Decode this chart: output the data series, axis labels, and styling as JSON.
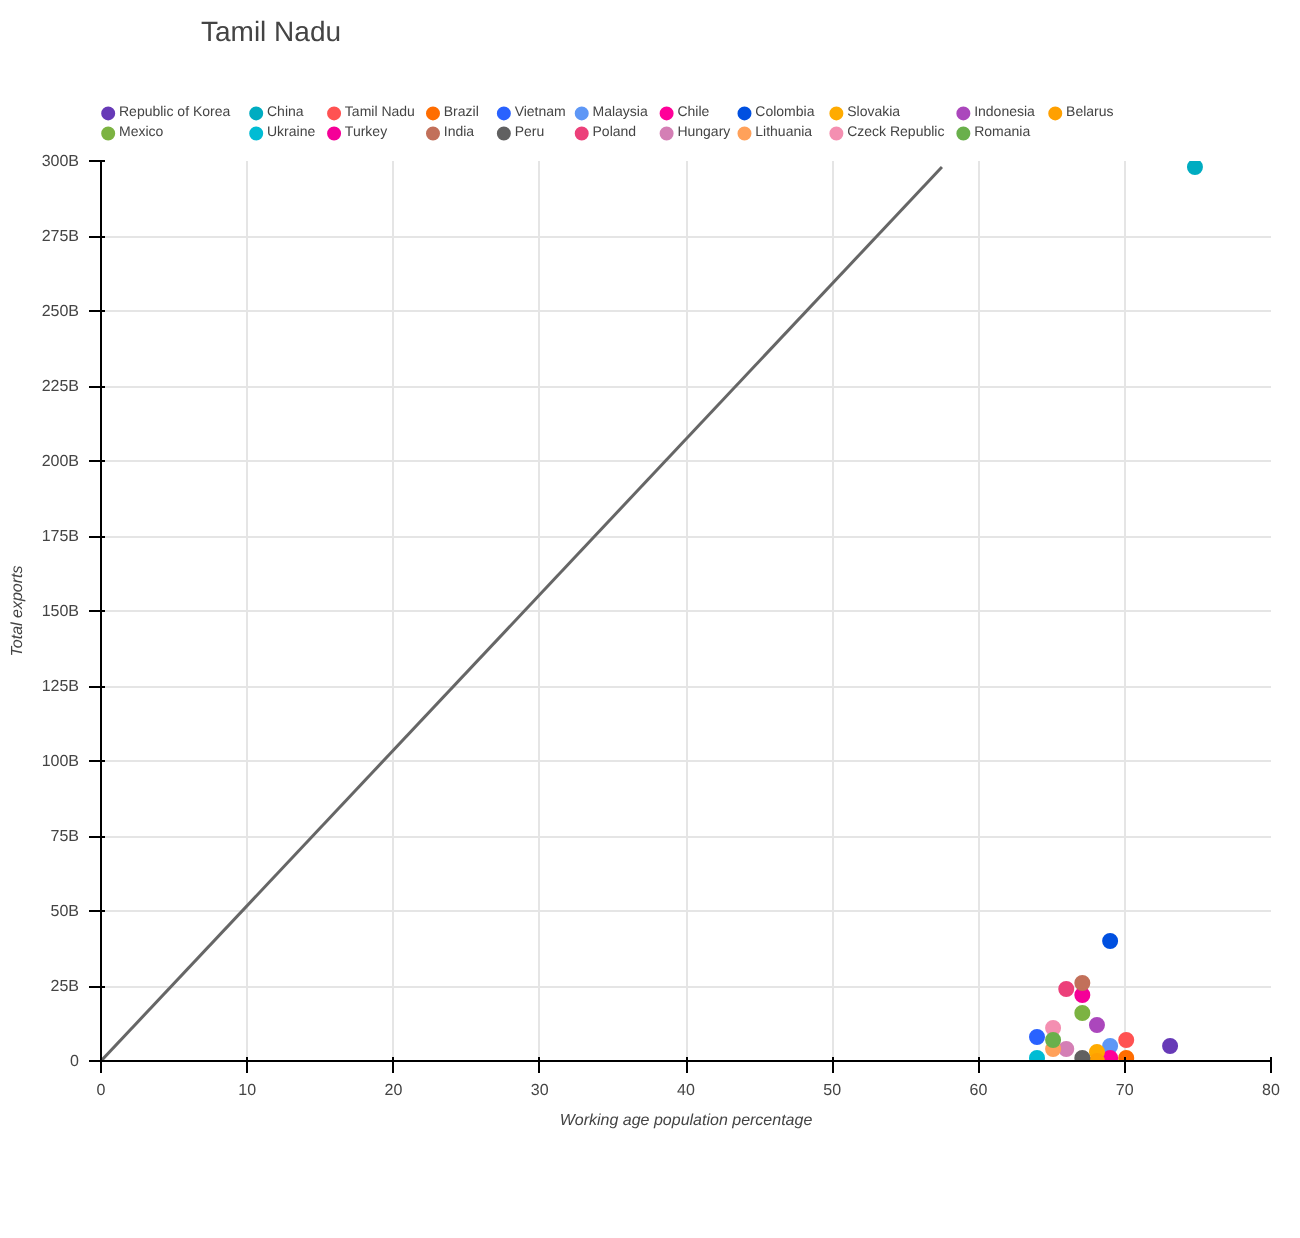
{
  "chart_data": {
    "type": "scatter",
    "title": "Tamil Nadu",
    "xlabel": "Working age population percentage",
    "ylabel": "Total exports",
    "xlim": [
      0,
      80
    ],
    "xticks": [
      0,
      10,
      20,
      30,
      40,
      50,
      60,
      70,
      80
    ],
    "ylim": [
      0,
      300
    ],
    "yticks": [
      0,
      {
        "value": 25,
        "label": "25B"
      },
      {
        "value": 50,
        "label": "50B"
      },
      {
        "value": 75,
        "label": "75B"
      },
      {
        "value": 100,
        "label": "100B"
      },
      {
        "value": 125,
        "label": "125B"
      },
      {
        "value": 150,
        "label": "150B"
      },
      {
        "value": 175,
        "label": "175B"
      },
      {
        "value": 200,
        "label": "200B"
      },
      {
        "value": 225,
        "label": "225B"
      },
      {
        "value": 250,
        "label": "250B"
      },
      {
        "value": 275,
        "label": "275B"
      },
      {
        "value": 300,
        "label": "300B"
      }
    ],
    "grid": true,
    "legend": "top",
    "marker": "circle",
    "series": [
      {
        "name": "Republic of Korea",
        "color": "#673ab7",
        "x": [
          73.1
        ],
        "values": [
          5
        ]
      },
      {
        "name": "China",
        "color": "#00acc1",
        "x": [
          74.8
        ],
        "values": [
          298
        ]
      },
      {
        "name": "Tamil Nadu",
        "color": "#ff5252",
        "x": [
          70.1
        ],
        "values": [
          7
        ]
      },
      {
        "name": "Brazil",
        "color": "#ff6d00",
        "x": [
          70.1
        ],
        "values": [
          1
        ]
      },
      {
        "name": "Vietnam",
        "color": "#2962ff",
        "x": [
          64.0
        ],
        "values": [
          8
        ]
      },
      {
        "name": "Malaysia",
        "color": "#5e97f6",
        "x": [
          69.0
        ],
        "values": [
          5
        ]
      },
      {
        "name": "Chile",
        "color": "#ff0099",
        "x": [
          69.0
        ],
        "values": [
          1
        ]
      },
      {
        "name": "Colombia",
        "color": "#0050e0",
        "x": [
          69.0
        ],
        "values": [
          40
        ]
      },
      {
        "name": "Slovakia",
        "color": "#ffab00",
        "x": [
          68.1
        ],
        "values": [
          3
        ]
      },
      {
        "name": "Indonesia",
        "color": "#ab47bc",
        "x": [
          68.1
        ],
        "values": [
          12
        ]
      },
      {
        "name": "Belarus",
        "color": "#ffa000",
        "x": [
          68.1
        ],
        "values": [
          0
        ]
      },
      {
        "name": "Mexico",
        "color": "#7cb342",
        "x": [
          67.1
        ],
        "values": [
          16
        ]
      },
      {
        "name": "Ukraine",
        "color": "#00bcd4",
        "x": [
          64.0
        ],
        "values": [
          1
        ]
      },
      {
        "name": "Turkey",
        "color": "#f50098",
        "x": [
          67.1
        ],
        "values": [
          22
        ]
      },
      {
        "name": "India",
        "color": "#c2705a",
        "x": [
          67.1
        ],
        "values": [
          26
        ]
      },
      {
        "name": "Peru",
        "color": "#616161",
        "x": [
          67.1
        ],
        "values": [
          1
        ]
      },
      {
        "name": "Poland",
        "color": "#ec407a",
        "x": [
          66.0
        ],
        "values": [
          24
        ]
      },
      {
        "name": "Hungary",
        "color": "#d47fb5",
        "x": [
          66.0
        ],
        "values": [
          4
        ]
      },
      {
        "name": "Lithuania",
        "color": "#ffa15a",
        "x": [
          65.1
        ],
        "values": [
          4
        ]
      },
      {
        "name": "Czeck Republic",
        "color": "#f48fb1",
        "x": [
          65.1
        ],
        "values": [
          11
        ]
      },
      {
        "name": "Romania",
        "color": "#6ab04c",
        "x": [
          65.1
        ],
        "values": [
          7
        ]
      },
      {
        "type": "line",
        "marker": "none",
        "color": "#666666",
        "x": [
          0,
          57.5
        ],
        "values": [
          0,
          298
        ]
      }
    ]
  }
}
